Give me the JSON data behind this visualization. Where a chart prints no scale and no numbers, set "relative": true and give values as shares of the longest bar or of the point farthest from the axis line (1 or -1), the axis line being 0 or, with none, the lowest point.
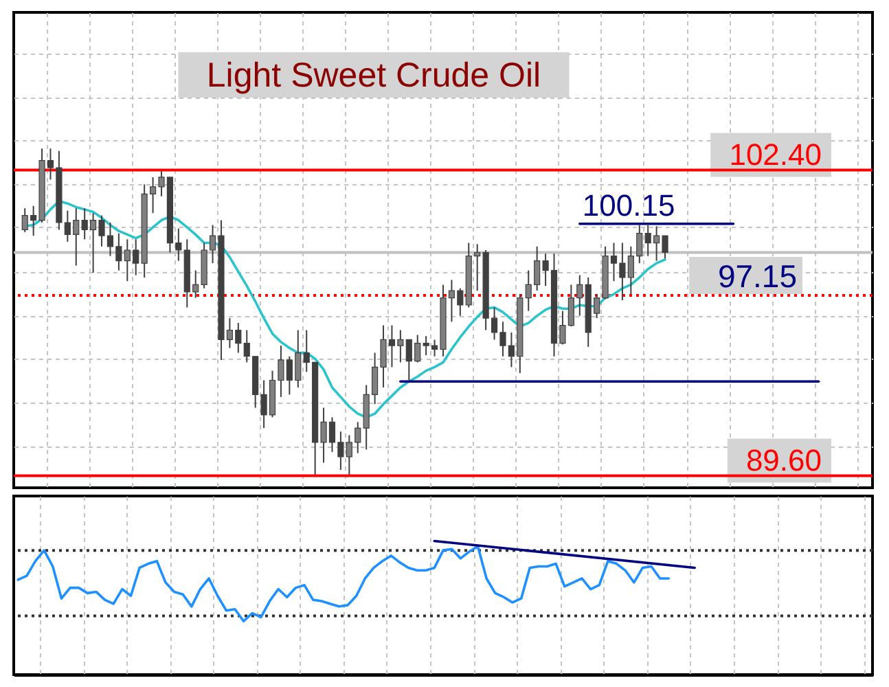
{
  "chart_data": [
    {
      "type": "candlestick",
      "title": "Light Sweet Crude Oil",
      "colors": [
        "#808080",
        "#404040",
        "#808080",
        "#404040",
        "#404040",
        "#404040",
        "#808080",
        "#404040",
        "#808080",
        "#404040",
        "#404040",
        "#404040",
        "#808080",
        "#404040",
        "#808080",
        "#808080",
        "#808080",
        "#404040",
        "#404040",
        "#404040",
        "#808080",
        "#808080",
        "#808080",
        "#404040",
        "#808080",
        "#404040",
        "#404040",
        "#404040",
        "#404040",
        "#808080",
        "#808080",
        "#404040",
        "#808080",
        "#404040",
        "#404040",
        "#808080",
        "#404040",
        "#404040",
        "#808080",
        "#808080",
        "#808080",
        "#808080",
        "#808080",
        "#404040",
        "#808080",
        "#404040",
        "#808080",
        "#404040",
        "#404040",
        "#808080",
        "#808080",
        "#404040",
        "#808080",
        "#808080",
        "#404040",
        "#404040",
        "#404040",
        "#404040",
        "#808080",
        "#808080",
        "#808080",
        "#404040",
        "#404040",
        "#808080",
        "#808080",
        "#808080",
        "#404040",
        "#808080",
        "#808080",
        "#404040",
        "#404040",
        "#808080",
        "#808080",
        "#404040",
        "#808080",
        "#404040",
        null,
        null,
        null,
        null,
        null,
        null,
        null,
        null,
        null,
        null,
        null,
        null,
        null,
        null,
        null,
        null,
        null,
        null,
        null,
        null,
        null,
        null,
        null
      ],
      "categories": [
        null,
        null,
        null,
        null,
        null,
        null,
        null,
        null,
        null,
        null,
        null,
        null,
        null,
        null,
        null,
        null,
        null,
        null,
        null,
        null,
        null,
        null,
        null,
        null,
        null,
        null,
        null,
        null,
        null,
        null,
        null,
        null,
        null,
        null,
        null,
        null,
        null,
        null,
        null,
        null,
        null,
        null,
        null,
        null,
        null,
        null,
        null,
        null,
        null,
        null,
        null,
        null,
        null,
        null,
        null,
        null,
        null,
        null,
        null,
        null,
        null,
        null,
        null,
        null,
        null,
        null,
        null,
        null,
        null,
        null,
        null,
        null,
        null,
        null,
        null,
        null,
        null,
        null,
        null,
        null,
        null,
        null,
        null,
        null,
        null,
        null,
        null,
        null,
        null,
        null,
        null,
        null,
        null,
        null,
        null,
        null,
        null,
        null,
        null
      ],
      "ohlc": [
        [
          99.9,
          100.8,
          99.8,
          100.5
        ],
        [
          100.5,
          100.9,
          99.65,
          100.3
        ],
        [
          100.3,
          103.3,
          100.2,
          102.8
        ],
        [
          102.8,
          103.3,
          102.0,
          102.5
        ],
        [
          102.5,
          103.2,
          99.9,
          100.2
        ],
        [
          100.2,
          100.7,
          99.4,
          99.7
        ],
        [
          99.7,
          100.8,
          98.4,
          100.3
        ],
        [
          100.3,
          100.8,
          99.5,
          99.9
        ],
        [
          99.9,
          100.6,
          98.1,
          100.3
        ],
        [
          100.3,
          100.5,
          99.2,
          99.65
        ],
        [
          99.65,
          100.2,
          98.8,
          99.2
        ],
        [
          99.2,
          99.75,
          98.2,
          98.6
        ],
        [
          98.6,
          99.5,
          97.75,
          99.05
        ],
        [
          99.05,
          99.5,
          98.0,
          98.5
        ],
        [
          98.5,
          101.8,
          97.9,
          101.4
        ],
        [
          101.4,
          102.1,
          100.6,
          101.7
        ],
        [
          101.7,
          102.35,
          101.3,
          102.1
        ],
        [
          102.1,
          102.1,
          98.95,
          99.35
        ],
        [
          99.35,
          99.95,
          98.6,
          99.05
        ],
        [
          99.05,
          99.5,
          96.65,
          97.3
        ],
        [
          97.3,
          98.2,
          97.05,
          97.6
        ],
        [
          97.6,
          99.35,
          97.45,
          99.05
        ],
        [
          99.05,
          100.1,
          98.5,
          99.65
        ],
        [
          99.65,
          100.3,
          94.45,
          95.3
        ],
        [
          95.3,
          96.2,
          94.95,
          95.7
        ],
        [
          95.7,
          96.0,
          94.75,
          95.15
        ],
        [
          95.15,
          95.7,
          94.35,
          94.6
        ],
        [
          94.6,
          94.6,
          92.45,
          93.0
        ],
        [
          93.0,
          93.6,
          91.6,
          92.15
        ],
        [
          92.15,
          94.0,
          92.05,
          93.6
        ],
        [
          93.6,
          95.05,
          92.9,
          94.45
        ],
        [
          94.45,
          94.6,
          93.0,
          93.6
        ],
        [
          93.6,
          95.7,
          93.3,
          94.75
        ],
        [
          94.75,
          95.7,
          93.95,
          94.35
        ],
        [
          94.35,
          94.35,
          89.65,
          91.0
        ],
        [
          91.0,
          92.45,
          90.15,
          91.85
        ],
        [
          91.85,
          92.05,
          90.6,
          91.0
        ],
        [
          91.0,
          91.45,
          89.85,
          90.4
        ],
        [
          90.4,
          91.3,
          89.65,
          91.0
        ],
        [
          91.0,
          91.85,
          90.55,
          91.6
        ],
        [
          91.6,
          93.4,
          90.7,
          93.0
        ],
        [
          93.0,
          94.75,
          92.6,
          94.15
        ],
        [
          94.15,
          95.9,
          93.3,
          95.3
        ],
        [
          95.3,
          95.9,
          94.15,
          95.05
        ],
        [
          95.05,
          95.7,
          94.35,
          95.3
        ],
        [
          95.3,
          95.3,
          93.6,
          94.4
        ],
        [
          94.4,
          95.5,
          94.35,
          95.15
        ],
        [
          95.15,
          95.45,
          94.65,
          95.05
        ],
        [
          95.05,
          95.3,
          94.6,
          94.9
        ],
        [
          94.9,
          97.6,
          94.6,
          97.05
        ],
        [
          97.05,
          97.8,
          96.05,
          97.35
        ],
        [
          97.35,
          97.45,
          96.3,
          96.75
        ],
        [
          96.75,
          99.35,
          96.65,
          98.8
        ],
        [
          98.8,
          99.3,
          97.35,
          98.95
        ],
        [
          98.95,
          99.05,
          95.7,
          96.2
        ],
        [
          96.2,
          96.65,
          95.3,
          95.6
        ],
        [
          95.6,
          96.05,
          94.6,
          95.05
        ],
        [
          95.05,
          95.6,
          94.15,
          94.6
        ],
        [
          94.6,
          97.2,
          93.9,
          97.05
        ],
        [
          97.05,
          98.2,
          96.5,
          97.6
        ],
        [
          97.6,
          99.2,
          97.35,
          98.6
        ],
        [
          98.6,
          98.9,
          97.55,
          98.2
        ],
        [
          98.2,
          98.9,
          94.6,
          95.15
        ],
        [
          95.15,
          96.5,
          95.1,
          95.9
        ],
        [
          95.9,
          97.6,
          95.85,
          97.05
        ],
        [
          97.05,
          98.0,
          96.3,
          97.6
        ],
        [
          97.6,
          97.9,
          95.0,
          95.6
        ],
        [
          96.4,
          97.2,
          96.2,
          97.05
        ],
        [
          97.05,
          99.2,
          97.0,
          98.8
        ],
        [
          98.8,
          99.35,
          97.75,
          98.5
        ],
        [
          98.5,
          99.35,
          96.95,
          97.9
        ],
        [
          97.9,
          99.2,
          97.2,
          98.8
        ],
        [
          98.8,
          100.1,
          98.5,
          99.75
        ],
        [
          99.75,
          100.15,
          98.8,
          99.35
        ],
        [
          99.35,
          100.05,
          98.6,
          99.65
        ],
        [
          99.65,
          99.65,
          98.7,
          98.95
        ],
        null,
        null,
        null,
        null,
        null,
        null,
        null,
        null,
        null,
        null,
        null,
        null,
        null,
        null,
        null,
        null,
        null,
        null,
        null,
        null,
        null,
        null,
        null
      ],
      "series": [
        {
          "type": "line",
          "color": "#2cc4cc",
          "line_style": "solid",
          "values": [
            100.05,
            100.1,
            100.35,
            100.75,
            101.1,
            101.0,
            100.85,
            100.75,
            100.65,
            100.4,
            100.1,
            99.85,
            99.7,
            99.55,
            99.7,
            100.0,
            100.3,
            100.45,
            100.3,
            100.0,
            99.7,
            99.35,
            99.35,
            99.25,
            98.75,
            98.15,
            97.55,
            96.9,
            96.2,
            95.55,
            95.2,
            94.95,
            94.75,
            94.75,
            94.5,
            94.05,
            93.3,
            92.9,
            92.5,
            92.2,
            92.05,
            92.2,
            92.6,
            92.95,
            93.3,
            93.55,
            93.75,
            94.0,
            94.15,
            94.35,
            94.9,
            95.4,
            95.85,
            96.25,
            96.6,
            96.65,
            96.45,
            96.15,
            95.85,
            96.0,
            96.3,
            96.55,
            96.7,
            96.6,
            96.6,
            96.75,
            96.7,
            96.7,
            97.05,
            97.2,
            97.45,
            97.6,
            97.9,
            98.25,
            98.5,
            98.65,
            null,
            null,
            null,
            null,
            null,
            null,
            null,
            null,
            null,
            null,
            null,
            null,
            null,
            null,
            null,
            null,
            null,
            null,
            null,
            null,
            null,
            null,
            null
          ]
        },
        {
          "type": "line",
          "name": "100.15",
          "color": "#000080",
          "line_style": "solid",
          "values": [
            null,
            null,
            null,
            null,
            null,
            null,
            null,
            null,
            null,
            null,
            null,
            null,
            null,
            null,
            null,
            null,
            null,
            null,
            null,
            null,
            null,
            null,
            null,
            null,
            null,
            null,
            null,
            null,
            null,
            null,
            null,
            null,
            null,
            null,
            null,
            null,
            null,
            null,
            null,
            null,
            null,
            null,
            null,
            null,
            null,
            null,
            null,
            null,
            null,
            null,
            null,
            null,
            null,
            null,
            null,
            null,
            null,
            null,
            null,
            null,
            null,
            null,
            null,
            null,
            null,
            100.15,
            null,
            null,
            null,
            null,
            null,
            null,
            null,
            null,
            null,
            null,
            null,
            null,
            null,
            null,
            null,
            null,
            null,
            100.15,
            null,
            null,
            null,
            null,
            null,
            null,
            null,
            null,
            null,
            null,
            null,
            null,
            null,
            null,
            null
          ]
        },
        {
          "type": "line",
          "color": "#000080",
          "line_style": "solid",
          "values": [
            null,
            null,
            null,
            null,
            null,
            null,
            null,
            null,
            null,
            null,
            null,
            null,
            null,
            null,
            null,
            null,
            null,
            null,
            null,
            null,
            null,
            null,
            null,
            null,
            null,
            null,
            null,
            null,
            null,
            null,
            null,
            null,
            null,
            null,
            null,
            null,
            null,
            null,
            null,
            null,
            null,
            null,
            null,
            null,
            93.55,
            null,
            null,
            null,
            null,
            null,
            null,
            null,
            null,
            null,
            null,
            null,
            null,
            null,
            null,
            null,
            null,
            null,
            null,
            null,
            null,
            null,
            null,
            null,
            null,
            null,
            null,
            null,
            null,
            null,
            null,
            null,
            null,
            null,
            null,
            null,
            null,
            null,
            null,
            null,
            null,
            null,
            null,
            null,
            null,
            null,
            null,
            null,
            null,
            93.55,
            null,
            null,
            null,
            null,
            null
          ]
        }
      ],
      "ylim": [
        89.1,
        109.0
      ],
      "yticks": [
        {
          "value": 90.8,
          "label": null
        },
        {
          "value": 92.65,
          "label": null
        },
        {
          "value": 94.5,
          "label": null
        },
        {
          "value": 96.3,
          "label": null
        },
        {
          "value": 98.15,
          "label": null
        },
        {
          "value": 100.0,
          "label": null
        },
        {
          "value": 101.8,
          "label": null
        },
        {
          "value": 103.65,
          "label": null
        },
        {
          "value": 105.45,
          "label": null
        },
        {
          "value": 107.3,
          "label": null
        }
      ],
      "grid": true,
      "tick_labels": false,
      "ref_lines": [
        {
          "axis": "y",
          "value": 102.4,
          "label": "102.40",
          "color": "#ff0000"
        },
        {
          "axis": "y",
          "value": 89.6,
          "label": "89.60",
          "color": "#ff0000"
        },
        {
          "axis": "y",
          "value": 97.15,
          "color": "#ff0000",
          "line_style": "dotted"
        },
        {
          "axis": "y",
          "value": 98.95,
          "color": "#c0c0c0"
        }
      ],
      "annotations": [
        {
          "text": "97.15",
          "y": 97.15
        }
      ]
    },
    {
      "type": "line",
      "relative": true,
      "categories": [
        null,
        null,
        null,
        null,
        null,
        null,
        null,
        null,
        null,
        null,
        null,
        null,
        null,
        null,
        null,
        null,
        null,
        null,
        null,
        null,
        null,
        null,
        null,
        null,
        null,
        null,
        null,
        null,
        null,
        null,
        null,
        null,
        null,
        null,
        null,
        null,
        null,
        null,
        null,
        null,
        null,
        null,
        null,
        null,
        null,
        null,
        null,
        null,
        null,
        null,
        null,
        null,
        null,
        null,
        null,
        null,
        null,
        null,
        null,
        null,
        null,
        null,
        null,
        null,
        null,
        null,
        null,
        null,
        null,
        null,
        null,
        null,
        null,
        null,
        null,
        null,
        null,
        null,
        null,
        null,
        null,
        null,
        null,
        null,
        null,
        null,
        null,
        null,
        null,
        null,
        null,
        null,
        null,
        null,
        null,
        null,
        null,
        null,
        null
      ],
      "series": [
        {
          "color": "#1e90ff",
          "line_style": "solid",
          "values": [
            0.71,
            0.74,
            0.85,
            0.93,
            0.81,
            0.57,
            0.65,
            0.65,
            0.61,
            0.62,
            0.56,
            0.53,
            0.64,
            0.59,
            0.8,
            0.83,
            0.85,
            0.69,
            0.62,
            0.6,
            0.51,
            0.64,
            0.72,
            0.59,
            0.48,
            0.49,
            0.4,
            0.46,
            0.43,
            0.55,
            0.64,
            0.58,
            0.65,
            0.67,
            0.56,
            0.55,
            0.53,
            0.51,
            0.52,
            0.59,
            0.72,
            0.8,
            0.85,
            0.89,
            0.84,
            0.8,
            0.78,
            0.78,
            0.8,
            0.93,
            0.94,
            0.87,
            0.92,
            0.96,
            0.72,
            0.61,
            0.58,
            0.54,
            0.57,
            0.8,
            0.81,
            0.81,
            0.83,
            0.66,
            0.69,
            0.72,
            0.64,
            0.67,
            0.85,
            0.83,
            0.78,
            0.69,
            0.8,
            0.81,
            0.72,
            0.72,
            null,
            null,
            null,
            null,
            null,
            null,
            null,
            null,
            null,
            null,
            null,
            null,
            null,
            null,
            null,
            null,
            null,
            null,
            null,
            null,
            null,
            null,
            null
          ]
        },
        {
          "color": "#000080",
          "line_style": "solid",
          "values": [
            null,
            null,
            null,
            null,
            null,
            null,
            null,
            null,
            null,
            null,
            null,
            null,
            null,
            null,
            null,
            null,
            null,
            null,
            null,
            null,
            null,
            null,
            null,
            null,
            null,
            null,
            null,
            null,
            null,
            null,
            null,
            null,
            null,
            null,
            null,
            null,
            null,
            null,
            null,
            null,
            null,
            null,
            null,
            null,
            null,
            null,
            null,
            null,
            1.0,
            null,
            null,
            null,
            null,
            null,
            null,
            null,
            null,
            null,
            null,
            null,
            null,
            null,
            null,
            null,
            null,
            null,
            null,
            null,
            null,
            null,
            null,
            null,
            null,
            null,
            null,
            null,
            null,
            null,
            0.8,
            null,
            null,
            null,
            null,
            null,
            null,
            null,
            null,
            null,
            null,
            null,
            null,
            null,
            null,
            null,
            null,
            null,
            null,
            null,
            null
          ]
        }
      ],
      "ref_lines": [
        {
          "axis": "y",
          "value": 0.93,
          "color": "#333333",
          "line_style": "dotted"
        },
        {
          "axis": "y",
          "value": 0.44,
          "color": "#333333",
          "line_style": "dotted"
        }
      ],
      "grid": "x",
      "tick_labels": false
    }
  ]
}
